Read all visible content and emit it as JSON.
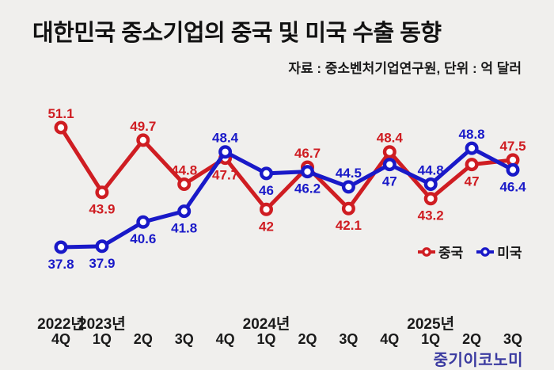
{
  "header": {
    "title": "대한민국 중소기업의 중국 및 미국 수출 동향",
    "source_note": "자료 : 중소벤처기업연구원, 단위 : 억 달러"
  },
  "watermark": "중기이코노미",
  "colors": {
    "china": "#cf1d22",
    "usa": "#1919c8",
    "background": "#f0efed",
    "axis_text": "#1a1a1a",
    "watermark": "#3a3aa0"
  },
  "chart_data": {
    "type": "line",
    "categories_quarters": [
      "4Q",
      "1Q",
      "2Q",
      "3Q",
      "4Q",
      "1Q",
      "2Q",
      "3Q",
      "4Q",
      "1Q",
      "2Q",
      "3Q"
    ],
    "year_labels": [
      {
        "text": "2022년",
        "quarter_index": 0
      },
      {
        "text": "2023년",
        "quarter_index": 1
      },
      {
        "text": "2024년",
        "quarter_index": 5
      },
      {
        "text": "2025년",
        "quarter_index": 9
      }
    ],
    "series": [
      {
        "key": "china",
        "name": "중국",
        "color": "#cf1d22",
        "values": [
          51.1,
          43.9,
          49.7,
          44.8,
          47.7,
          42,
          46.7,
          42.1,
          48.4,
          43.2,
          47,
          47.5
        ],
        "label_pos": [
          "above",
          "below",
          "above",
          "above",
          "below",
          "below",
          "above",
          "below",
          "above",
          "below",
          "below",
          "above"
        ]
      },
      {
        "key": "usa",
        "name": "미국",
        "color": "#1919c8",
        "values": [
          37.8,
          37.9,
          40.6,
          41.8,
          48.4,
          46,
          46.2,
          44.5,
          47,
          44.8,
          48.8,
          46.4
        ],
        "label_pos": [
          "below",
          "below",
          "below",
          "below",
          "above",
          "below",
          "below",
          "above",
          "below",
          "above",
          "above",
          "below"
        ]
      }
    ],
    "ylim": [
      36,
      53
    ],
    "grid": false,
    "legend_position": "right-middle"
  }
}
